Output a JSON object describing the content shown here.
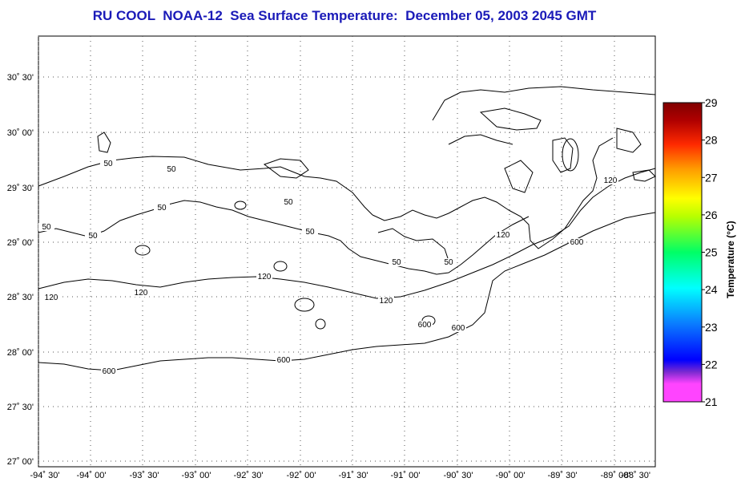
{
  "header": {
    "title": "RU COOL  NOAA-12  Sea Surface Temperature:  December 05, 2003 2045 GMT"
  },
  "map": {
    "lat_labels": [
      "30˚ 30'",
      "30˚ 00'",
      "29˚ 30'",
      "29˚ 00'",
      "28˚ 30'",
      "28˚ 00'",
      "27˚ 30'",
      "27˚ 00'"
    ],
    "lon_labels": [
      "-94˚ 30'",
      "-94˚ 00'",
      "-93˚ 30'",
      "-93˚ 00'",
      "-92˚ 30'",
      "-92˚ 00'",
      "-91˚ 30'",
      "-91˚ 00'",
      "-90˚ 30'",
      "-90˚ 00'",
      "-89˚ 30'",
      "-89˚ 00'",
      "-88˚ 30'"
    ],
    "contour_labels": [
      "50",
      "50",
      "50",
      "50",
      "50",
      "50",
      "50",
      "50",
      "50",
      "120",
      "120",
      "120",
      "120",
      "120",
      "120",
      "600",
      "600",
      "600",
      "600",
      "600"
    ]
  },
  "colorbar": {
    "title": "Temperature (°C)",
    "ticks": [
      "29",
      "28",
      "27",
      "26",
      "25",
      "24",
      "23",
      "22",
      "21"
    ],
    "range": [
      21,
      29
    ],
    "colors": [
      "#ff44ff",
      "#7a2ad0",
      "#0000ff",
      "#0a7bff",
      "#00ffff",
      "#00ff66",
      "#b8ff00",
      "#ffff00",
      "#ff9a00",
      "#ff2a00",
      "#b00000",
      "#800000"
    ]
  }
}
